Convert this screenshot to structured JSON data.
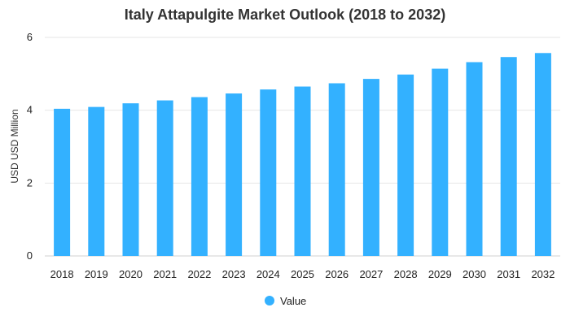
{
  "chart_data": {
    "type": "bar",
    "title": "Italy Attapulgite Market Outlook (2018 to 2032)",
    "xlabel": "",
    "ylabel": "USD USD Million",
    "ylim": [
      0,
      6
    ],
    "yticks": [
      0,
      2,
      4,
      6
    ],
    "grid": true,
    "legend_position": "bottom",
    "categories": [
      "2018",
      "2019",
      "2020",
      "2021",
      "2022",
      "2023",
      "2024",
      "2025",
      "2026",
      "2027",
      "2028",
      "2029",
      "2030",
      "2031",
      "2032"
    ],
    "series": [
      {
        "name": "Value",
        "color": "#33b1ff",
        "values": [
          4.04,
          4.09,
          4.19,
          4.27,
          4.36,
          4.46,
          4.57,
          4.65,
          4.74,
          4.86,
          4.98,
          5.14,
          5.32,
          5.46,
          5.57
        ]
      }
    ]
  }
}
